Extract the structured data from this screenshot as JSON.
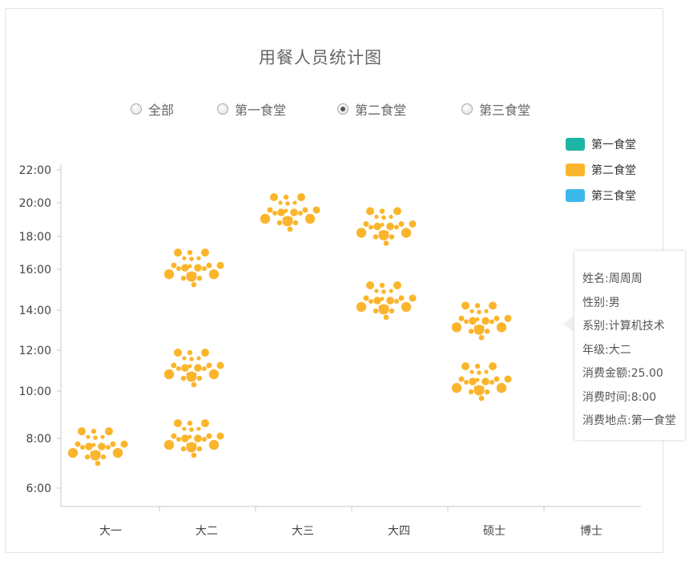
{
  "title": "用餐人员统计图",
  "filters": {
    "options": [
      {
        "label": "全部",
        "checked": false
      },
      {
        "label": "第一食堂",
        "checked": false
      },
      {
        "label": "第二食堂",
        "checked": true
      },
      {
        "label": "第三食堂",
        "checked": false
      }
    ]
  },
  "legend": [
    {
      "label": "第一食堂",
      "color": "#1fb5a5"
    },
    {
      "label": "第二食堂",
      "color": "#fbb52c"
    },
    {
      "label": "第三食堂",
      "color": "#3db7ec"
    }
  ],
  "tooltip": {
    "lines": [
      "姓名:周周周",
      "性别:男",
      "系别:计算机技术",
      "年级:大二",
      "消费金额:25.00",
      "消费时间:8:00",
      "消费地点:第一食堂"
    ]
  },
  "chart_data": {
    "type": "scatter",
    "title": "用餐人员统计图",
    "categories": [
      "大一",
      "大二",
      "大三",
      "大四",
      "硕士",
      "博士"
    ],
    "y_tick_labels": [
      "6:00",
      "8:00",
      "10:00",
      "12:00",
      "14:00",
      "16:00",
      "18:00",
      "20:00",
      "22:00"
    ],
    "series": [
      {
        "color": "#fbb52c",
        "clusters": [
          {
            "category": "大一",
            "time": "7:50"
          },
          {
            "category": "大二",
            "time": "11:20"
          },
          {
            "category": "大二",
            "time": "8:10"
          },
          {
            "category": "大二",
            "time": "16:20"
          },
          {
            "category": "大三",
            "time": "19:40"
          },
          {
            "category": "大四",
            "time": "18:50"
          },
          {
            "category": "大四",
            "time": "14:40"
          },
          {
            "category": "硕士",
            "time": "10:40"
          },
          {
            "category": "硕士",
            "time": "13:40"
          }
        ]
      }
    ]
  }
}
